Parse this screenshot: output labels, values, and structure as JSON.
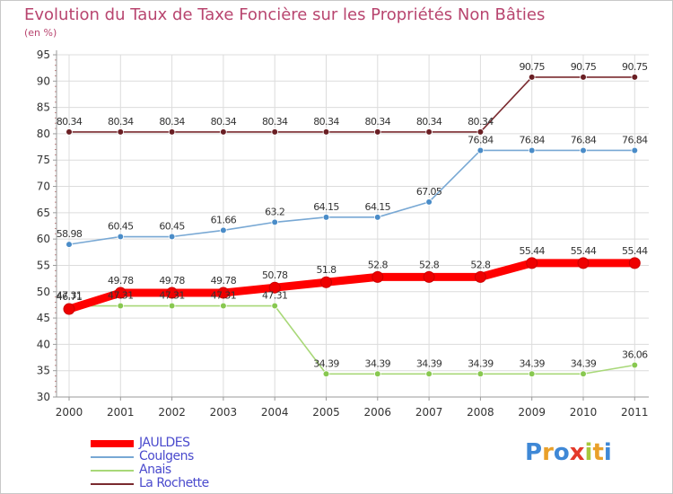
{
  "title": "Evolution du Taux de Taxe Foncière sur les Propriétés Non Bâties",
  "subtitle": "(en %)",
  "logo_text": "Proxiti",
  "colors": {
    "background": "#ffffff",
    "grid": "#dcdcdc",
    "axis": "#9a9a9a",
    "title": "#b8456f",
    "legend_text": "#4a4acd"
  },
  "chart_data": {
    "type": "line",
    "x": [
      "2000",
      "2001",
      "2002",
      "2003",
      "2004",
      "2005",
      "2006",
      "2007",
      "2008",
      "2009",
      "2010",
      "2011"
    ],
    "ylim": [
      30,
      95
    ],
    "yticks": [
      30,
      35,
      40,
      45,
      50,
      55,
      60,
      65,
      70,
      75,
      80,
      85,
      90,
      95
    ],
    "grid": true,
    "legend": "bottom-left",
    "series": [
      {
        "name": "La Rochette",
        "color": "#7a2a2f",
        "point_color": "#6a1f24",
        "values": [
          80.34,
          80.34,
          80.34,
          80.34,
          80.34,
          80.34,
          80.34,
          80.34,
          80.34,
          90.75,
          90.75,
          90.75
        ],
        "labels": [
          "80.34",
          "80.34",
          "80.34",
          "80.34",
          "80.34",
          "80.34",
          "80.34",
          "80.34",
          "80.34",
          "90.75",
          "90.75",
          "90.75"
        ]
      },
      {
        "name": "Coulgens",
        "color": "#78a8d4",
        "point_color": "#4a8cc8",
        "values": [
          58.98,
          60.45,
          60.45,
          61.66,
          63.2,
          64.15,
          64.15,
          67.05,
          76.84,
          76.84,
          76.84,
          76.84
        ],
        "labels": [
          "58.98",
          "60.45",
          "60.45",
          "61.66",
          "63.2",
          "64.15",
          "64.15",
          "67.05",
          "76.84",
          "76.84",
          "76.84",
          "76.84"
        ]
      },
      {
        "name": "Anais",
        "color": "#a8d878",
        "point_color": "#88c850",
        "values": [
          47.31,
          47.31,
          47.31,
          47.31,
          47.31,
          34.39,
          34.39,
          34.39,
          34.39,
          34.39,
          34.39,
          36.06
        ],
        "labels": [
          "47.31",
          "47.31",
          "47.31",
          "47.31",
          "47.31",
          "34.39",
          "34.39",
          "34.39",
          "34.39",
          "34.39",
          "34.39",
          "36.06"
        ]
      },
      {
        "name": "JAULDES",
        "color": "#ff0000",
        "point_color": "#ee0000",
        "values": [
          46.71,
          49.78,
          49.78,
          49.78,
          50.78,
          51.8,
          52.8,
          52.8,
          52.8,
          55.44,
          55.44,
          55.44
        ],
        "labels": [
          "46.71",
          "49.78",
          "49.78",
          "49.78",
          "50.78",
          "51.8",
          "52.8",
          "52.8",
          "52.8",
          "55.44",
          "55.44",
          "55.44"
        ]
      }
    ]
  },
  "legend_items": [
    {
      "name": "JAULDES",
      "color": "#ff0000"
    },
    {
      "name": "Coulgens",
      "color": "#78a8d4"
    },
    {
      "name": "Anais",
      "color": "#a8d878"
    },
    {
      "name": "La Rochette",
      "color": "#7a2a2f"
    }
  ]
}
